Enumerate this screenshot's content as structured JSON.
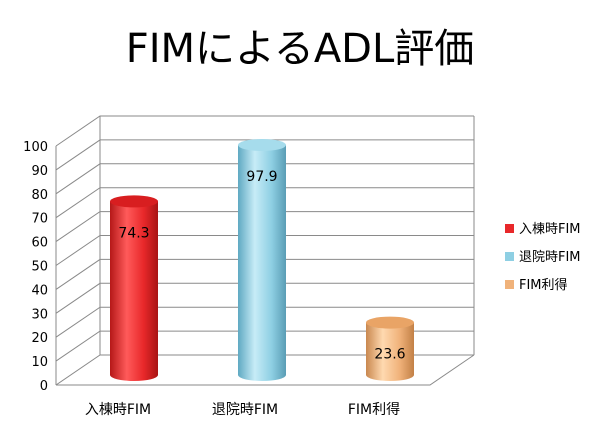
{
  "chart_data": {
    "type": "bar",
    "title": "FIMによるADL評価",
    "categories": [
      "入棟時FIM",
      "退院時FIM",
      "FIM利得"
    ],
    "series": [
      {
        "name": "入棟時FIM",
        "values": [
          74.3,
          null,
          null
        ],
        "color": "#e8282a"
      },
      {
        "name": "退院時FIM",
        "values": [
          null,
          97.9,
          null
        ],
        "color": "#8ecfe3"
      },
      {
        "name": "FIM利得",
        "values": [
          null,
          null,
          23.6
        ],
        "color": "#f0b27a"
      }
    ],
    "data_labels": [
      "74.3",
      "97.9",
      "23.6"
    ],
    "ylim": [
      0,
      100
    ],
    "yticks": [
      0,
      10,
      20,
      30,
      40,
      50,
      60,
      70,
      80,
      90,
      100
    ],
    "grid": true,
    "legend": "right",
    "style": "3d-cylinder"
  }
}
